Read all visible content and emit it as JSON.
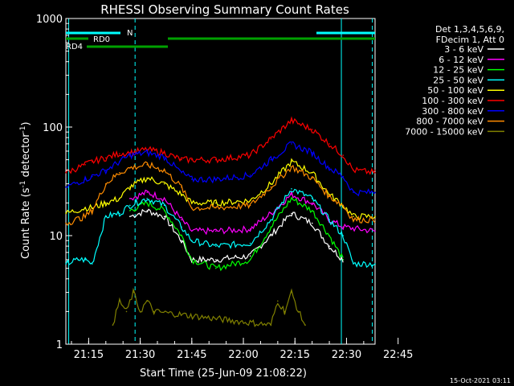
{
  "chart_data": {
    "type": "line",
    "title": "RHESSI Observing Summary Count Rates",
    "xlabel": "Start Time (25-Jun-09 21:08:22)",
    "ylabel_main": "Count Rate (s",
    "ylabel_sup1": "-1",
    "ylabel_mid": " detector",
    "ylabel_sup2": "-1",
    "ylabel_end": ")",
    "yscale": "log",
    "ylim": [
      1,
      1000
    ],
    "xlim_minutes": [
      8.37,
      98.3
    ],
    "x_ticks": [
      {
        "label": "21:15",
        "minutes": 15
      },
      {
        "label": "21:30",
        "minutes": 30
      },
      {
        "label": "21:45",
        "minutes": 45
      },
      {
        "label": "22:00",
        "minutes": 60
      },
      {
        "label": "22:15",
        "minutes": 75
      },
      {
        "label": "22:30",
        "minutes": 90
      },
      {
        "label": "22:45",
        "minutes": 105
      }
    ],
    "y_ticks": [
      {
        "label": "1",
        "value": 1
      },
      {
        "label": "10",
        "value": 10
      },
      {
        "label": "100",
        "value": 100
      },
      {
        "label": "1000",
        "value": 1000
      }
    ],
    "legend_header": [
      "Det 1,3,4,5,6,9,",
      "FDecim 1, Att 0"
    ],
    "series": [
      {
        "name": "3 - 6 keV",
        "color": "#ffffff",
        "x": [
          18,
          22,
          27,
          32,
          37,
          42,
          45,
          52,
          62,
          68,
          74,
          80,
          85,
          89
        ],
        "y": [
          null,
          null,
          15,
          17,
          15,
          9,
          6,
          6,
          6.5,
          10,
          16,
          13,
          8,
          6
        ]
      },
      {
        "name": "6 - 12 keV",
        "color": "#ff00ff",
        "x": [
          18,
          22,
          27,
          32,
          37,
          42,
          45,
          52,
          62,
          68,
          74,
          80,
          85,
          89,
          98.3
        ],
        "y": [
          null,
          null,
          22,
          25,
          22,
          14,
          11,
          11,
          11.5,
          16,
          24,
          20,
          14,
          12,
          11
        ]
      },
      {
        "name": "12 - 25 keV",
        "color": "#00ff00",
        "x": [
          18,
          22,
          27,
          32,
          37,
          42,
          45,
          52,
          62,
          68,
          74,
          80,
          85,
          89
        ],
        "y": [
          null,
          null,
          17,
          20,
          17,
          10,
          6,
          5,
          6,
          12,
          22,
          17,
          10,
          6
        ]
      },
      {
        "name": "25 - 50 keV",
        "color": "#00ffff",
        "x": [
          8.4,
          12,
          14,
          16,
          20,
          24,
          27,
          32,
          37,
          42,
          45,
          52,
          62,
          68,
          74,
          80,
          85,
          89,
          92,
          98.3
        ],
        "y": [
          5.5,
          6,
          6,
          5.5,
          15,
          16,
          19,
          22,
          19,
          12,
          9,
          8,
          8.5,
          14,
          27,
          22,
          14,
          10,
          5.5,
          5.5
        ]
      },
      {
        "name": "50 - 100 keV",
        "color": "#ffff00",
        "x": [
          8.4,
          14,
          16,
          20,
          24,
          27,
          32,
          37,
          42,
          45,
          52,
          62,
          68,
          74,
          80,
          85,
          89,
          92,
          98.3
        ],
        "y": [
          16,
          18,
          18,
          20,
          22,
          28,
          34,
          30,
          24,
          20,
          20,
          21,
          30,
          48,
          38,
          24,
          19,
          15,
          15
        ]
      },
      {
        "name": "100 - 300 keV",
        "color": "#ff0000",
        "x": [
          8.4,
          14,
          16,
          20,
          24,
          27,
          32,
          37,
          42,
          45,
          52,
          62,
          68,
          74,
          80,
          85,
          89,
          92,
          98.3
        ],
        "y": [
          38,
          45,
          48,
          52,
          57,
          58,
          62,
          58,
          50,
          50,
          50,
          55,
          78,
          115,
          95,
          70,
          55,
          40,
          38
        ]
      },
      {
        "name": "300 - 800 keV",
        "color": "#0000ff",
        "x": [
          8.4,
          14,
          16,
          20,
          24,
          27,
          32,
          37,
          42,
          45,
          52,
          62,
          68,
          74,
          80,
          85,
          89,
          92,
          98.3
        ],
        "y": [
          28,
          33,
          35,
          40,
          48,
          55,
          58,
          53,
          38,
          33,
          33,
          36,
          50,
          70,
          58,
          42,
          35,
          25,
          25
        ]
      },
      {
        "name": "800 - 7000 keV",
        "color": "#ff8c00",
        "x": [
          8.4,
          14,
          16,
          20,
          24,
          27,
          32,
          37,
          42,
          45,
          52,
          62,
          68,
          74,
          80,
          85,
          89,
          92,
          98.3
        ],
        "y": [
          13,
          15,
          17,
          30,
          38,
          42,
          45,
          40,
          28,
          18,
          18,
          19,
          28,
          43,
          34,
          23,
          19,
          14,
          14
        ]
      },
      {
        "name": "7000 - 15000 keV",
        "color": "#808000",
        "x": [
          22,
          24,
          26,
          28,
          30,
          32,
          34,
          68,
          70,
          72,
          74,
          76,
          78
        ],
        "y": [
          1.5,
          2.5,
          2,
          3,
          2,
          2.5,
          2,
          1.5,
          2.5,
          2,
          3,
          2,
          1.5
        ]
      }
    ],
    "status_bars": {
      "N_label": "N",
      "RD0_label": "RD0",
      "RD4_label": "RD4"
    },
    "footer_date": "15-Oct-2021 03:11"
  }
}
